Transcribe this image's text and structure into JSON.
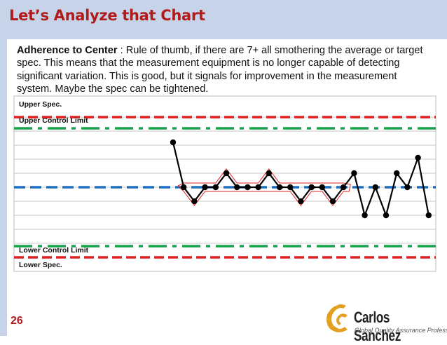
{
  "slide": {
    "title": "Let’s Analyze that Chart",
    "body_bold": "Adherence to Center",
    "body_rest": " : Rule of thumb, if there are 7+ all smothering the average or target spec. This means that the measurement equipment is no longer capable of detecting significant variation. This is good, but it signals for improvement in the measurement system. Maybe the spec can be tightened.",
    "page_number": "26"
  },
  "logo": {
    "name": "Carlos Sanchez",
    "tagline": "Global Quality Assurance Professional"
  },
  "colors": {
    "title": "#b01c1c",
    "band": "#c7d3e8",
    "spec_line": "#e02020",
    "control_line": "#16a34a",
    "center_line": "#1f6fc1",
    "data": "#000000",
    "highlight": "#e02020"
  },
  "chart_data": {
    "type": "line",
    "labels": {
      "upper_spec": "Upper Spec.",
      "upper_control": "Upper Control Limit",
      "lower_control": "Lower Control Limit",
      "lower_spec": "Lower Spec."
    },
    "levels": {
      "upper_spec": 5,
      "upper_control": 4.2,
      "center": 0,
      "lower_control": -4.2,
      "lower_spec": -5
    },
    "ylim": [
      -6,
      6.5
    ],
    "grid": true,
    "values": [
      3.2,
      0,
      -1,
      0,
      0,
      1,
      0,
      0,
      0,
      1,
      0,
      0,
      -1,
      0,
      0,
      -1,
      0,
      1,
      -2,
      0,
      -2,
      1,
      0,
      2.1,
      -2
    ],
    "highlight_range": [
      1,
      16
    ]
  }
}
